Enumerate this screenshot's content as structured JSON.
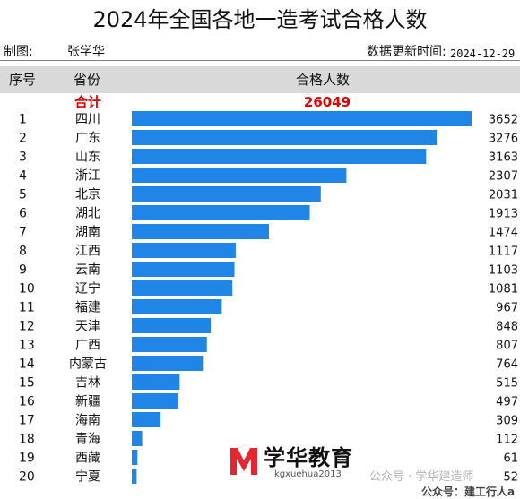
{
  "title": "2024年全国各地一造考试合格人数",
  "meta": {
    "maker_label": "制图:",
    "maker_name": "张学华",
    "update_label": "数据更新时间:",
    "update_date": "2024-12-29"
  },
  "header": {
    "col_rank": "序号",
    "col_province": "省份",
    "col_count": "合格人数"
  },
  "total": {
    "label": "合计",
    "value": "26049"
  },
  "watermark": {
    "logo_text": "学华教育",
    "url": "kgxuehua2013",
    "official_account": "公众号 · 学华建造师",
    "official_account_2": "公众号：建工行人a"
  },
  "colors": {
    "bar": "#1f86e8",
    "total": "#e00000",
    "header_bg": "#d9d9d9",
    "logo_red": "#e3262f"
  },
  "chart_data": {
    "type": "bar",
    "orientation": "horizontal",
    "title": "2024年全国各地一造考试合格人数",
    "ranks": [
      "1",
      "2",
      "3",
      "4",
      "5",
      "6",
      "7",
      "8",
      "9",
      "10",
      "11",
      "12",
      "13",
      "14",
      "15",
      "16",
      "17",
      "18",
      "19",
      "20"
    ],
    "categories": [
      "四川",
      "广东",
      "山东",
      "浙江",
      "北京",
      "湖北",
      "湖南",
      "江西",
      "云南",
      "辽宁",
      "福建",
      "天津",
      "广西",
      "内蒙古",
      "吉林",
      "新疆",
      "海南",
      "青海",
      "西藏",
      "宁夏"
    ],
    "values": [
      3652,
      3276,
      3163,
      2307,
      2031,
      1913,
      1474,
      1117,
      1103,
      1081,
      967,
      848,
      807,
      764,
      515,
      497,
      309,
      112,
      61,
      52
    ],
    "xlim": [
      0,
      3652
    ],
    "grid": false,
    "legend": "none"
  }
}
